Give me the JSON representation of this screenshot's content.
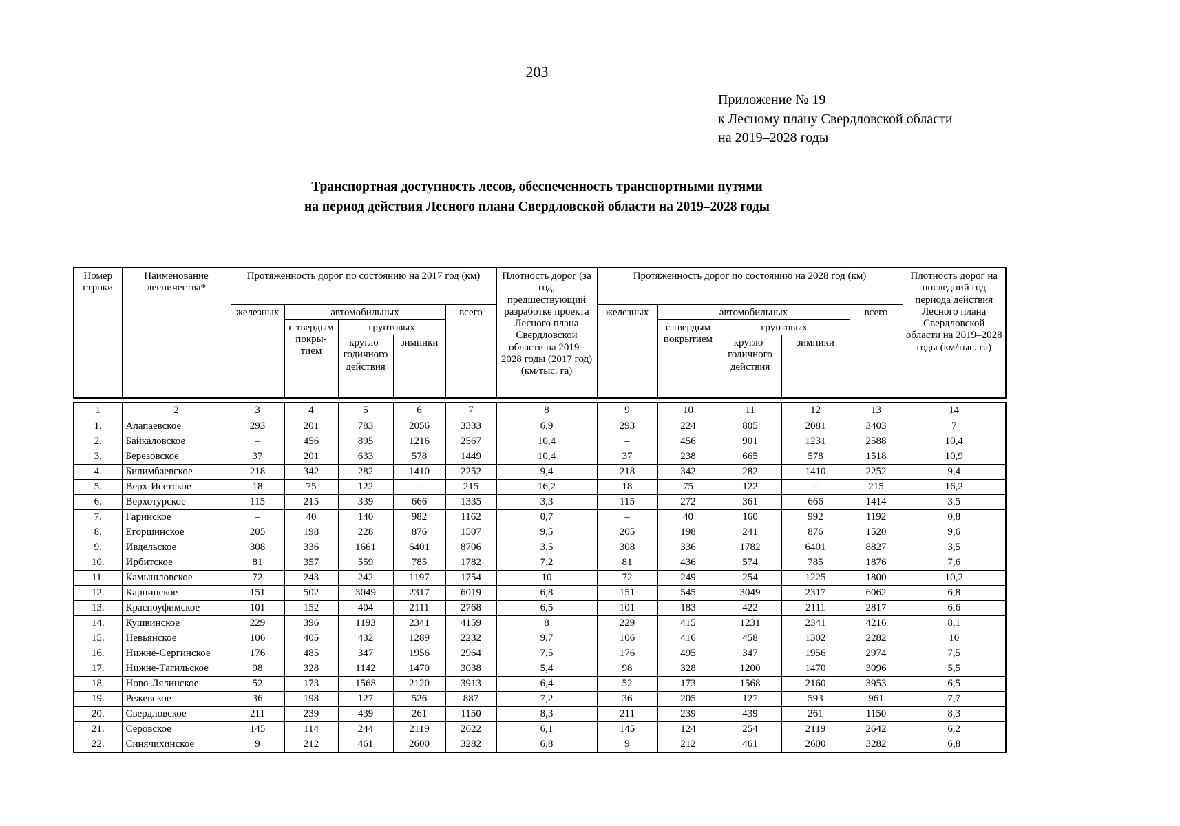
{
  "page": {
    "number": "203"
  },
  "annex": {
    "line1": "Приложение № 19",
    "line2": "к Лесному плану Свердловской области",
    "line3": "на 2019–2028 годы"
  },
  "title": {
    "line1": "Транспортная доступность лесов, обеспеченность транспортными путями",
    "line2": "на период действия Лесного плана Свердловской области на 2019–2028 годы"
  },
  "table": {
    "header": {
      "row_number": "Номер строки",
      "forestry_name": "Наименование лесничества*",
      "length_2017": "Протяженность дорог по состоянию на 2017 год (км)",
      "density_2017": "Плотность дорог (за год, предшествующий разработке проекта Лесного плана Свердловской области на 2019–2028 годы (2017 год) (км/тыс. га)",
      "length_2028": "Протяженность дорог по состоянию на 2028 год (км)",
      "density_2028": "Плотность дорог на последний год периода действия Лесного плана Свердловской области на 2019–2028 годы (км/тыс. га)",
      "railways_2017": "железных",
      "railways_2028": "железных",
      "automobile_2017": "автомобильных",
      "automobile_2028": "автомобильных",
      "hard_surface_2017": "с твердым покры- тием",
      "hard_surface_2028": "с твердым покрытием",
      "dirt_2017": "грунтовых",
      "dirt_2028": "грунтовых",
      "year_round_2017": "кругло- годичного действия",
      "year_round_2028": "кругло- годичного действия",
      "winter_2017": "зимники",
      "winter_2028": "зимники",
      "total_2017": "всего",
      "total_2028": "всего"
    },
    "column_numbers": [
      "1",
      "2",
      "3",
      "4",
      "5",
      "6",
      "7",
      "8",
      "9",
      "10",
      "11",
      "12",
      "13",
      "14"
    ],
    "rows": [
      [
        "1.",
        "Алапаевское",
        "293",
        "201",
        "783",
        "2056",
        "3333",
        "6,9",
        "293",
        "224",
        "805",
        "2081",
        "3403",
        "7"
      ],
      [
        "2.",
        "Байкаловское",
        "–",
        "456",
        "895",
        "1216",
        "2567",
        "10,4",
        "–",
        "456",
        "901",
        "1231",
        "2588",
        "10,4"
      ],
      [
        "3.",
        "Березовское",
        "37",
        "201",
        "633",
        "578",
        "1449",
        "10,4",
        "37",
        "238",
        "665",
        "578",
        "1518",
        "10,9"
      ],
      [
        "4.",
        "Билимбаевское",
        "218",
        "342",
        "282",
        "1410",
        "2252",
        "9,4",
        "218",
        "342",
        "282",
        "1410",
        "2252",
        "9,4"
      ],
      [
        "5.",
        "Верх-Исетское",
        "18",
        "75",
        "122",
        "–",
        "215",
        "16,2",
        "18",
        "75",
        "122",
        "–",
        "215",
        "16,2"
      ],
      [
        "6.",
        "Верхотурское",
        "115",
        "215",
        "339",
        "666",
        "1335",
        "3,3",
        "115",
        "272",
        "361",
        "666",
        "1414",
        "3,5"
      ],
      [
        "7.",
        "Гаринское",
        "–",
        "40",
        "140",
        "982",
        "1162",
        "0,7",
        "–",
        "40",
        "160",
        "992",
        "1192",
        "0,8"
      ],
      [
        "8.",
        "Егоршинское",
        "205",
        "198",
        "228",
        "876",
        "1507",
        "9,5",
        "205",
        "198",
        "241",
        "876",
        "1520",
        "9,6"
      ],
      [
        "9.",
        "Ивдельское",
        "308",
        "336",
        "1661",
        "6401",
        "8706",
        "3,5",
        "308",
        "336",
        "1782",
        "6401",
        "8827",
        "3,5"
      ],
      [
        "10.",
        "Ирбитское",
        "81",
        "357",
        "559",
        "785",
        "1782",
        "7,2",
        "81",
        "436",
        "574",
        "785",
        "1876",
        "7,6"
      ],
      [
        "11.",
        "Камышловское",
        "72",
        "243",
        "242",
        "1197",
        "1754",
        "10",
        "72",
        "249",
        "254",
        "1225",
        "1800",
        "10,2"
      ],
      [
        "12.",
        "Карпинское",
        "151",
        "502",
        "3049",
        "2317",
        "6019",
        "6,8",
        "151",
        "545",
        "3049",
        "2317",
        "6062",
        "6,8"
      ],
      [
        "13.",
        "Красноуфимское",
        "101",
        "152",
        "404",
        "2111",
        "2768",
        "6,5",
        "101",
        "183",
        "422",
        "2111",
        "2817",
        "6,6"
      ],
      [
        "14.",
        "Кушвинское",
        "229",
        "396",
        "1193",
        "2341",
        "4159",
        "8",
        "229",
        "415",
        "1231",
        "2341",
        "4216",
        "8,1"
      ],
      [
        "15.",
        "Невьянское",
        "106",
        "405",
        "432",
        "1289",
        "2232",
        "9,7",
        "106",
        "416",
        "458",
        "1302",
        "2282",
        "10"
      ],
      [
        "16.",
        "Нижне-Сергинское",
        "176",
        "485",
        "347",
        "1956",
        "2964",
        "7,5",
        "176",
        "495",
        "347",
        "1956",
        "2974",
        "7,5"
      ],
      [
        "17.",
        "Нижне-Тагильское",
        "98",
        "328",
        "1142",
        "1470",
        "3038",
        "5,4",
        "98",
        "328",
        "1200",
        "1470",
        "3096",
        "5,5"
      ],
      [
        "18.",
        "Ново-Лялинское",
        "52",
        "173",
        "1568",
        "2120",
        "3913",
        "6,4",
        "52",
        "173",
        "1568",
        "2160",
        "3953",
        "6,5"
      ],
      [
        "19.",
        "Режевское",
        "36",
        "198",
        "127",
        "526",
        "887",
        "7,2",
        "36",
        "205",
        "127",
        "593",
        "961",
        "7,7"
      ],
      [
        "20.",
        "Свердловское",
        "211",
        "239",
        "439",
        "261",
        "1150",
        "8,3",
        "211",
        "239",
        "439",
        "261",
        "1150",
        "8,3"
      ],
      [
        "21.",
        "Серовское",
        "145",
        "114",
        "244",
        "2119",
        "2622",
        "6,1",
        "145",
        "124",
        "254",
        "2119",
        "2642",
        "6,2"
      ],
      [
        "22.",
        "Синячихинское",
        "9",
        "212",
        "461",
        "2600",
        "3282",
        "6,8",
        "9",
        "212",
        "461",
        "2600",
        "3282",
        "6,8"
      ]
    ]
  }
}
